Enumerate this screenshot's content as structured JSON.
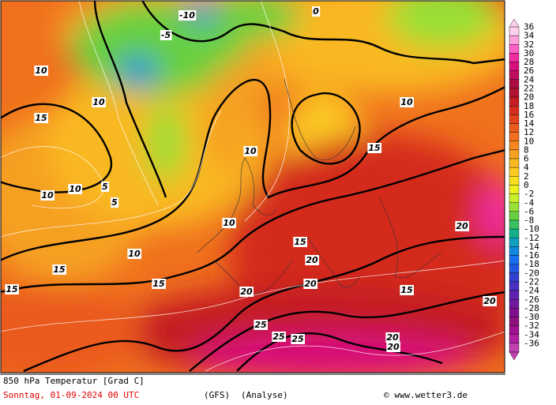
{
  "map": {
    "title": "850 hPa Temperatur [Grad C]",
    "date": "Sonntag, 01-09-2024  00 UTC",
    "model": "(GFS)",
    "run": "(Analyse)",
    "credit": "© www.wetter3.de",
    "contour_labels": [
      "10",
      "15",
      "10",
      "10",
      "5",
      "10",
      "10",
      "15",
      "15",
      "20",
      "20",
      "25",
      "25",
      "25",
      "20",
      "15",
      "15",
      "20",
      "20",
      "15",
      "10",
      "5",
      "0",
      "-5",
      "-10",
      "15",
      "20",
      "10",
      "10",
      "20"
    ],
    "legend": {
      "values": [
        36,
        34,
        32,
        30,
        28,
        26,
        24,
        22,
        20,
        18,
        16,
        14,
        12,
        10,
        8,
        6,
        4,
        2,
        0,
        -2,
        -4,
        -6,
        -8,
        -10,
        -12,
        -14,
        -16,
        -18,
        -20,
        -22,
        -24,
        -26,
        -28,
        -30,
        -32,
        -34,
        -36
      ],
      "colors": [
        "#ffd0ec",
        "#ffa0dc",
        "#ff60c8",
        "#f02aa0",
        "#d8107c",
        "#c00c5c",
        "#a80c40",
        "#b01430",
        "#c41e24",
        "#d42c1e",
        "#e2421e",
        "#ea5a1e",
        "#f0701e",
        "#f4881e",
        "#f6a020",
        "#f9b822",
        "#fccc22",
        "#f8e020",
        "#eef020",
        "#c8ee2a",
        "#98e034",
        "#68d040",
        "#38c060",
        "#14b08c",
        "#10a0c0",
        "#1088e0",
        "#1870f0",
        "#2058e0",
        "#3040d0",
        "#4830c0",
        "#6020b0",
        "#7018a0",
        "#801090",
        "#901080",
        "#a01090",
        "#b020a0",
        "#c040b0"
      ]
    }
  }
}
